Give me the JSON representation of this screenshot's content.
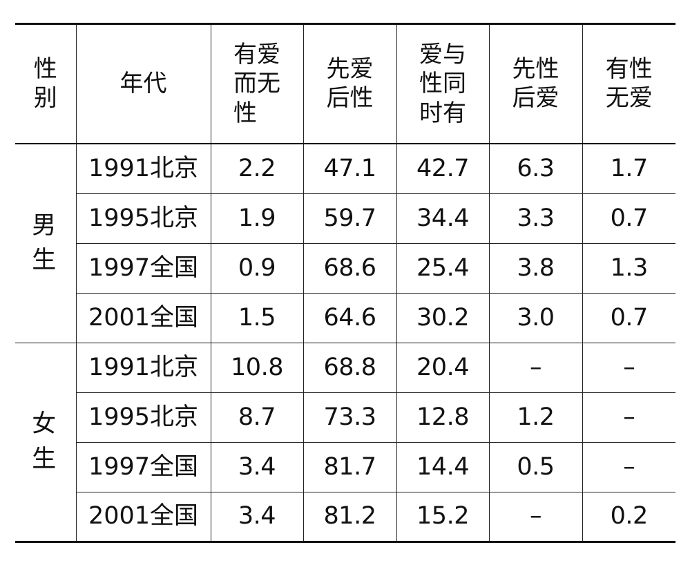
{
  "table": {
    "headers": {
      "gender": "性\n别",
      "era": "年代",
      "love_no_sex": "有爱\n而无\n性",
      "love_then_sex": "先爱\n后性",
      "love_and_sex": "爱与\n性同\n时有",
      "sex_then_love": "先性\n后爱",
      "sex_no_love": "有性\n无爱"
    },
    "groups": [
      {
        "gender": "男\n生",
        "rows": [
          {
            "era": "1991北京",
            "values": [
              "2.2",
              "47.1",
              "42.7",
              "6.3",
              "1.7"
            ]
          },
          {
            "era": "1995北京",
            "values": [
              "1.9",
              "59.7",
              "34.4",
              "3.3",
              "0.7"
            ]
          },
          {
            "era": "1997全国",
            "values": [
              "0.9",
              "68.6",
              "25.4",
              "3.8",
              "1.3"
            ]
          },
          {
            "era": "2001全国",
            "values": [
              "1.5",
              "64.6",
              "30.2",
              "3.0",
              "0.7"
            ]
          }
        ]
      },
      {
        "gender": "女\n生",
        "rows": [
          {
            "era": "1991北京",
            "values": [
              "10.8",
              "68.8",
              "20.4",
              "–",
              "–"
            ]
          },
          {
            "era": "1995北京",
            "values": [
              "8.7",
              "73.3",
              "12.8",
              "1.2",
              "–"
            ]
          },
          {
            "era": "1997全国",
            "values": [
              "3.4",
              "81.7",
              "14.4",
              "0.5",
              "–"
            ]
          },
          {
            "era": "2001全国",
            "values": [
              "3.4",
              "81.2",
              "15.2",
              "–",
              "0.2"
            ]
          }
        ]
      }
    ]
  }
}
